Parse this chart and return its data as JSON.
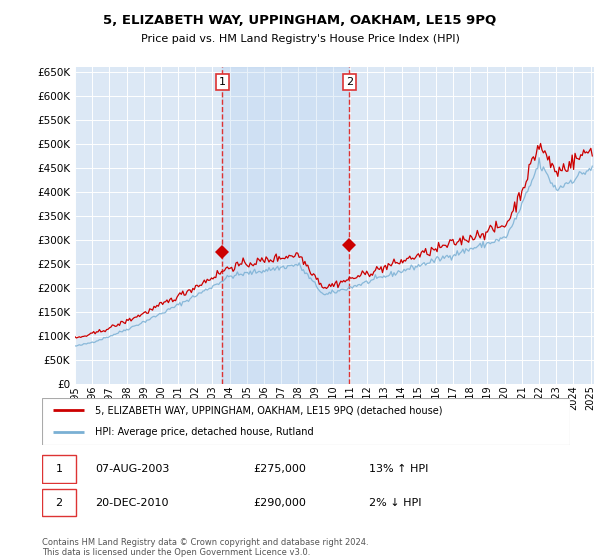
{
  "title": "5, ELIZABETH WAY, UPPINGHAM, OAKHAM, LE15 9PQ",
  "subtitle": "Price paid vs. HM Land Registry's House Price Index (HPI)",
  "ylim": [
    0,
    660000
  ],
  "yticks": [
    0,
    50000,
    100000,
    150000,
    200000,
    250000,
    300000,
    350000,
    400000,
    450000,
    500000,
    550000,
    600000,
    650000
  ],
  "bg_color": "#dce8f5",
  "grid_color": "#ffffff",
  "legend_label_red": "5, ELIZABETH WAY, UPPINGHAM, OAKHAM, LE15 9PQ (detached house)",
  "legend_label_blue": "HPI: Average price, detached house, Rutland",
  "transaction1": {
    "num": 1,
    "date": "07-AUG-2003",
    "price": "£275,000",
    "hpi": "13% ↑ HPI"
  },
  "transaction2": {
    "num": 2,
    "date": "20-DEC-2010",
    "price": "£290,000",
    "hpi": "2% ↓ HPI"
  },
  "footnote": "Contains HM Land Registry data © Crown copyright and database right 2024.\nThis data is licensed under the Open Government Licence v3.0.",
  "marker1_x": 2003.58,
  "marker1_y": 275000,
  "marker2_x": 2010.97,
  "marker2_y": 290000,
  "vline1_x": 2003.58,
  "vline2_x": 2010.97,
  "red_color": "#cc0000",
  "blue_color": "#7ab0d4",
  "shade_color": "#ddeeff",
  "vline_color": "#dd3333",
  "xlim_left": 1995.0,
  "xlim_right": 2025.2
}
